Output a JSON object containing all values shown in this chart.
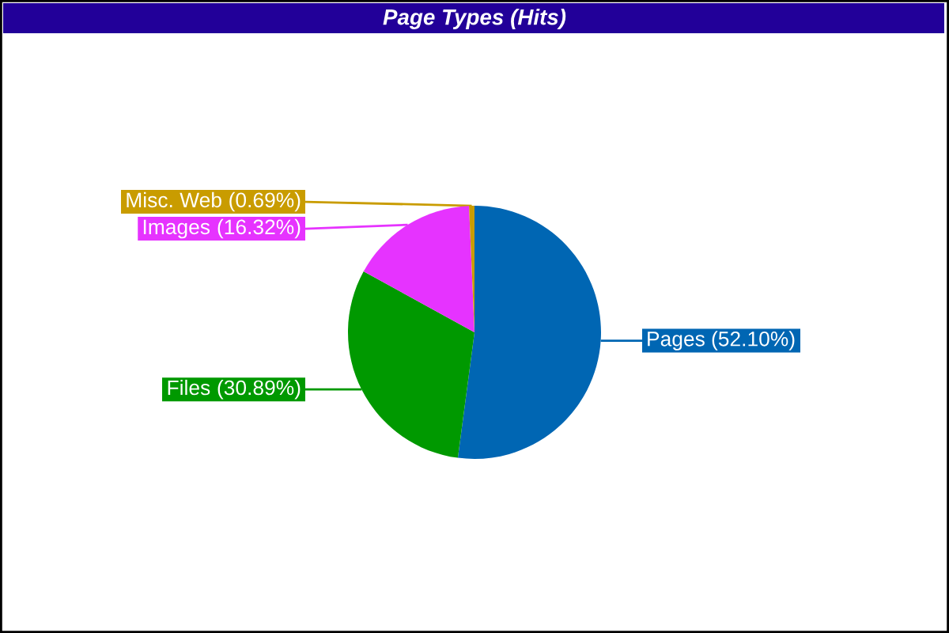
{
  "chart_data": {
    "type": "pie",
    "title": "Page Types (Hits)",
    "categories": [
      "Pages",
      "Files",
      "Images",
      "Misc. Web"
    ],
    "values": [
      52.1,
      30.89,
      16.32,
      0.69
    ],
    "colors": [
      "#0066b3",
      "#009900",
      "#e633ff",
      "#c99c00"
    ],
    "value_labels": [
      "(52.10%)",
      "(30.89%)",
      "(16.32%)",
      "(0.69%)"
    ]
  }
}
